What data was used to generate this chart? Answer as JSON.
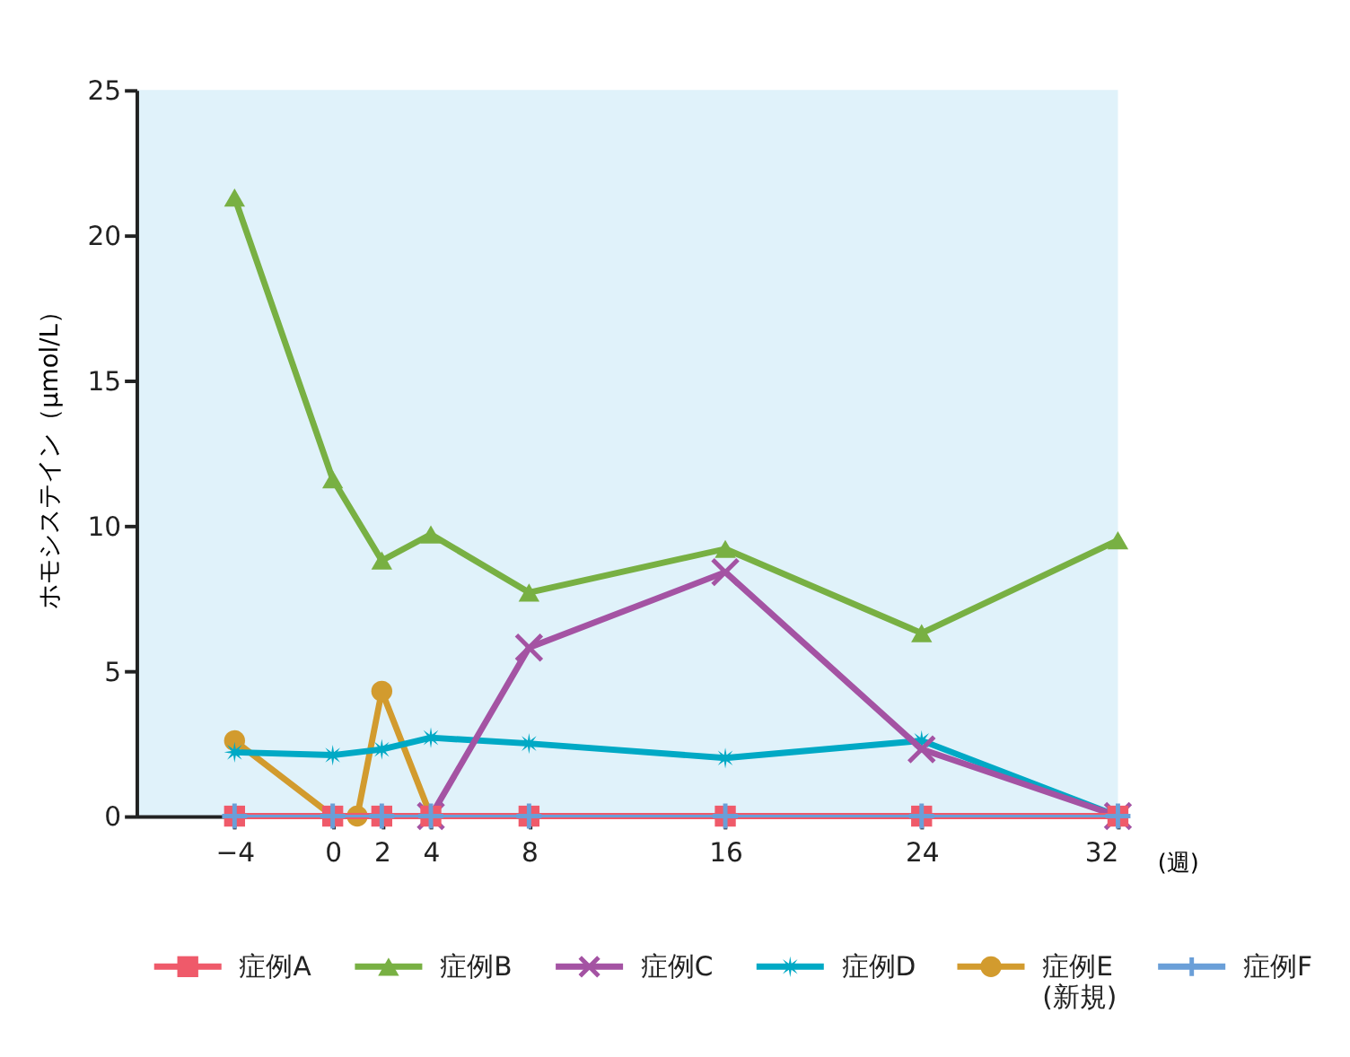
{
  "chart_data": {
    "type": "line",
    "ylabel": "ホモシステイン（μmol/L）",
    "xlabel": "(週)",
    "x": [
      -4,
      0,
      2,
      4,
      8,
      16,
      24,
      32
    ],
    "xlim": [
      -8,
      32
    ],
    "xticks": [
      -4,
      0,
      2,
      4,
      8,
      16,
      24,
      32
    ],
    "ylim": [
      0,
      25
    ],
    "yticks": [
      0,
      5,
      10,
      15,
      20,
      25
    ],
    "grid": false,
    "legend": "bottom",
    "line_style": "solid",
    "series": [
      {
        "name": "症例A",
        "color": "#ef5a6a",
        "marker": "square",
        "values": [
          0,
          0,
          0,
          0,
          0,
          0,
          0,
          0
        ]
      },
      {
        "name": "症例B",
        "color": "#78b043",
        "marker": "triangle",
        "values": [
          21.3,
          11.6,
          8.8,
          9.7,
          7.7,
          9.2,
          6.3,
          9.5
        ]
      },
      {
        "name": "症例C",
        "color": "#a453a3",
        "marker": "x",
        "x": [
          4,
          8,
          16,
          24,
          32
        ],
        "values": [
          0,
          5.8,
          8.4,
          2.3,
          0
        ]
      },
      {
        "name": "症例D",
        "color": "#00a9c5",
        "marker": "star",
        "values": [
          2.2,
          2.1,
          2.3,
          2.7,
          2.5,
          2.0,
          2.6,
          0
        ]
      },
      {
        "name": "症例E\n(新規)",
        "color": "#d29b2e",
        "marker": "circle",
        "x": [
          -4,
          0,
          1,
          2,
          4
        ],
        "values": [
          2.6,
          0,
          0,
          4.3,
          0
        ]
      },
      {
        "name": "症例F",
        "color": "#6a9fd8",
        "marker": "cross",
        "values": [
          0,
          0,
          0,
          0,
          0,
          0,
          0,
          0
        ]
      }
    ]
  }
}
